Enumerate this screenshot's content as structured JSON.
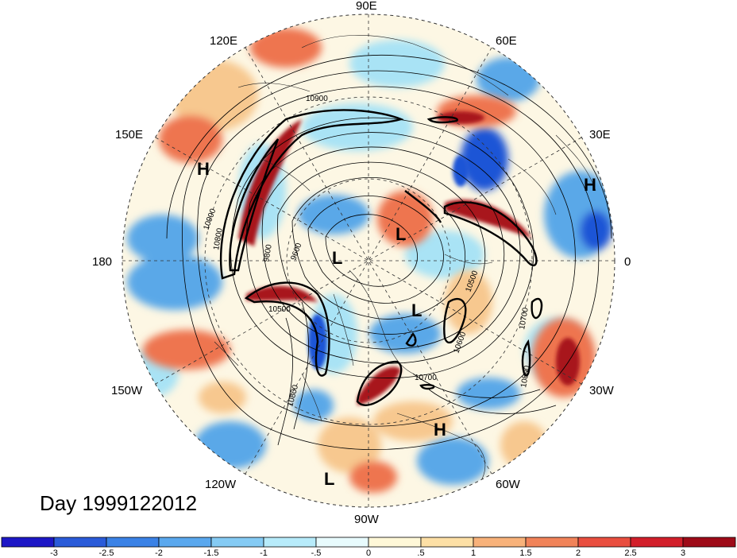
{
  "map": {
    "projection": "north polar stereographic",
    "lon_labels": [
      "90E",
      "60E",
      "30E",
      "0",
      "30W",
      "60W",
      "90W",
      "120W",
      "150W",
      "180",
      "150E",
      "120E"
    ],
    "pressure_centers": [
      "H",
      "H",
      "H",
      "L",
      "L",
      "L",
      "L"
    ],
    "contour_labels": [
      "10900",
      "10900",
      "9800",
      "9600",
      "10500",
      "10500",
      "10600",
      "10700",
      "10700",
      "10800",
      "10800",
      "10800"
    ],
    "colors": {
      "ocean_neutral": "#fdf7e4",
      "light_blue": "#a9e3f5",
      "mid_blue": "#5aa8e8",
      "deep_blue": "#1a55d6",
      "light_red": "#f7c88f",
      "mid_red": "#ee7550",
      "deep_red": "#a8141c"
    }
  },
  "title": {
    "text": "Day 1999122012"
  },
  "colorbar": {
    "tick_labels": [
      "-3",
      "-2.5",
      "-2",
      "-1.5",
      "-1",
      "-.5",
      "0",
      ".5",
      "1",
      "1.5",
      "2",
      "2.5",
      "3"
    ],
    "colors": [
      "#1d17c6",
      "#2a5bd9",
      "#3b82e6",
      "#5aa8ee",
      "#85cbf4",
      "#b7ebfa",
      "#e8fbfd",
      "#fff8d8",
      "#fde0a6",
      "#f8b27a",
      "#f18359",
      "#e94e3f",
      "#d21f2a",
      "#9e0b18"
    ]
  }
}
